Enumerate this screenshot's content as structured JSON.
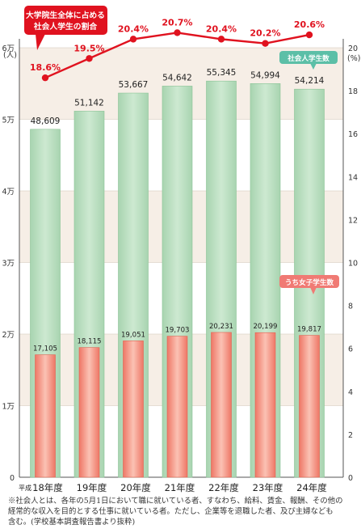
{
  "chart_data": {
    "type": "bar",
    "categories": [
      "18年度",
      "19年度",
      "20年度",
      "21年度",
      "22年度",
      "23年度",
      "24年度"
    ],
    "era_prefix": "平成",
    "series": [
      {
        "name": "社会人学生数",
        "values": [
          48609,
          51142,
          53667,
          54642,
          55345,
          54994,
          54214
        ],
        "labels": [
          "48,609",
          "51,142",
          "53,667",
          "54,642",
          "55,345",
          "54,994",
          "54,214"
        ],
        "color": "#bfe0c4"
      },
      {
        "name": "うち女子学生数",
        "values": [
          17105,
          18115,
          19051,
          19703,
          20231,
          20199,
          19817
        ],
        "labels": [
          "17,105",
          "18,115",
          "19,051",
          "19,703",
          "20,231",
          "20,199",
          "19,817"
        ],
        "color": "#f08c7c"
      }
    ],
    "line_series": {
      "name": "大学院生全体に占める社会人学生の割合",
      "values": [
        18.6,
        19.5,
        20.4,
        20.7,
        20.4,
        20.2,
        20.6
      ],
      "labels": [
        "18.6%",
        "19.5%",
        "20.4%",
        "20.7%",
        "20.4%",
        "20.2%",
        "20.6%"
      ],
      "color": "#e0121f"
    },
    "y_left": {
      "ticks": [
        "0",
        "1万",
        "2万",
        "3万",
        "4万",
        "5万",
        "6万"
      ],
      "unit": "(人)",
      "range": [
        0,
        60000
      ]
    },
    "y_right": {
      "ticks": [
        "0",
        "2",
        "4",
        "6",
        "8",
        "10",
        "12",
        "14",
        "16",
        "18",
        "20"
      ],
      "unit": "(%)",
      "range": [
        0,
        20
      ]
    },
    "callout_lines": [
      "大学院生全体に占める",
      "社会人学生の割合"
    ],
    "badge_total": "社会人学生数",
    "badge_female": "うち女子学生数"
  },
  "footnote": {
    "line1": "※社会人とは、各年の5月1日において職に就いている者、すなわち、給料、賃金、報酬、その他の",
    "line2": "経常的な収入を目的とする仕事に就いている者。ただし、企業等を退職した者、及び主婦なども",
    "line3": "含む。(学校基本調査報告書より抜粋)"
  }
}
